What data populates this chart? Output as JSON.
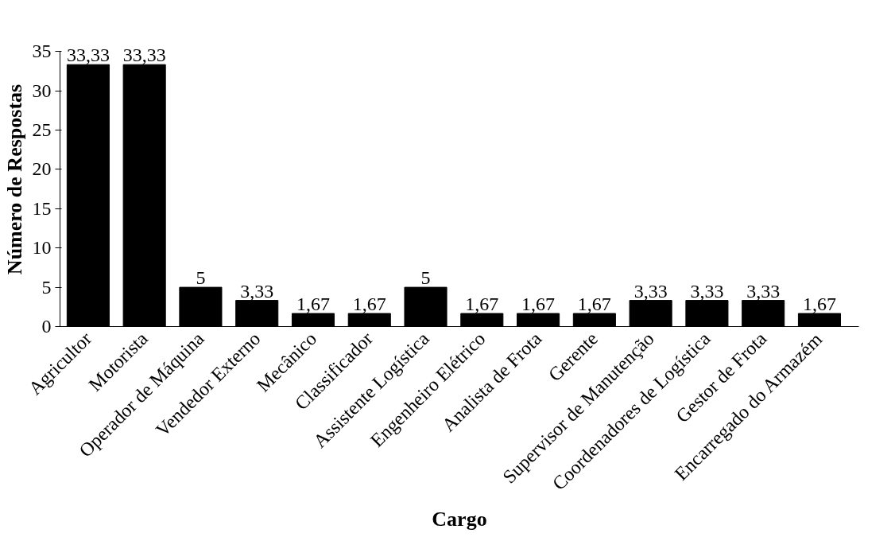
{
  "chart_data": {
    "type": "bar",
    "xlabel": "Cargo",
    "ylabel": "Número de Respostas",
    "categories": [
      "Agricultor",
      "Motorista",
      "Operador de Máquina",
      "Vendedor Externo",
      "Mecânico",
      "Classificador",
      "Assistente Logística",
      "Engenheiro Elétrico",
      "Analista de Frota",
      "Gerente",
      "Supervisor de Manutenção",
      "Coordenadores de Logística",
      "Gestor de Frota",
      "Encarregado do Armazém"
    ],
    "values": [
      33.33,
      33.33,
      5,
      3.33,
      1.67,
      1.67,
      5,
      1.67,
      1.67,
      1.67,
      3.33,
      3.33,
      3.33,
      1.67
    ],
    "value_labels": [
      "33,33",
      "33,33",
      "5",
      "3,33",
      "1,67",
      "1,67",
      "5",
      "1,67",
      "1,67",
      "1,67",
      "3,33",
      "3,33",
      "3,33",
      "1,67"
    ],
    "color": "#000000",
    "ylim": [
      0,
      35
    ],
    "yticks": [
      0,
      5,
      10,
      15,
      20,
      25,
      30,
      35
    ],
    "grid": false
  }
}
